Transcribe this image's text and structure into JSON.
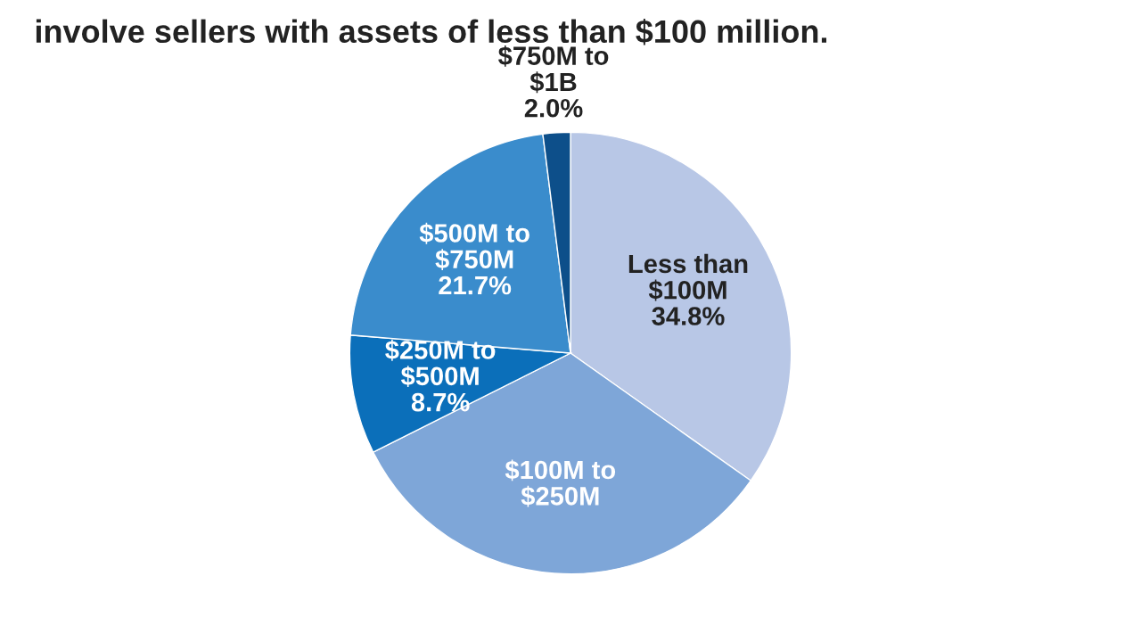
{
  "chart_data": {
    "type": "pie",
    "title": "involve sellers with assets of less than $100 million.",
    "categories": [
      "Less than $100M",
      "$100M to $250M",
      "$250M to $500M",
      "$500M to $750M",
      "$750M to $1B"
    ],
    "values": [
      34.8,
      32.8,
      8.7,
      21.7,
      2.0
    ],
    "value_labels": [
      "34.8%",
      null,
      "8.7%",
      "21.7%",
      "2.0%"
    ],
    "colors": [
      "#b8c7e6",
      "#7ea6d8",
      "#0b6fba",
      "#3a8ccc",
      "#0d4f8a"
    ]
  }
}
